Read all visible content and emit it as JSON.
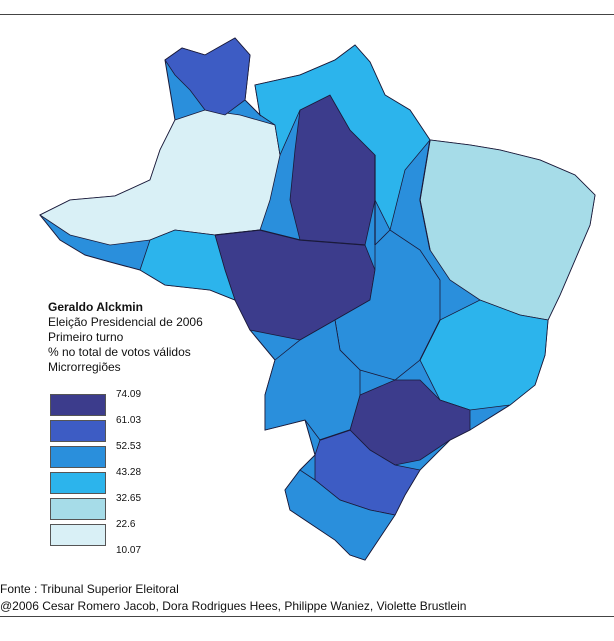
{
  "legend": {
    "candidate": "Geraldo Alckmin",
    "election": "Eleição Presidencial de 2006",
    "round": "Primeiro turno",
    "measure": "% no total de votos válidos",
    "unit": "Microrregiões",
    "breaks": [
      "74.09",
      "61.03",
      "52.53",
      "43.28",
      "32.65",
      "22.6",
      "10.07"
    ],
    "classes": [
      {
        "color": "#3c3c8c"
      },
      {
        "color": "#3d5cc4"
      },
      {
        "color": "#2a8fdc"
      },
      {
        "color": "#2cb4ec"
      },
      {
        "color": "#a6dce8"
      },
      {
        "color": "#d9f0f6"
      }
    ]
  },
  "footer": {
    "source": "Fonte : Tribunal Superior Eleitoral",
    "credit": "@2006 Cesar Romero Jacob, Dora Rodrigues Hees, Philippe Waniez, Violette Brustlein"
  },
  "colors": {
    "border": "#1a1a3a",
    "background": "#ffffff"
  }
}
